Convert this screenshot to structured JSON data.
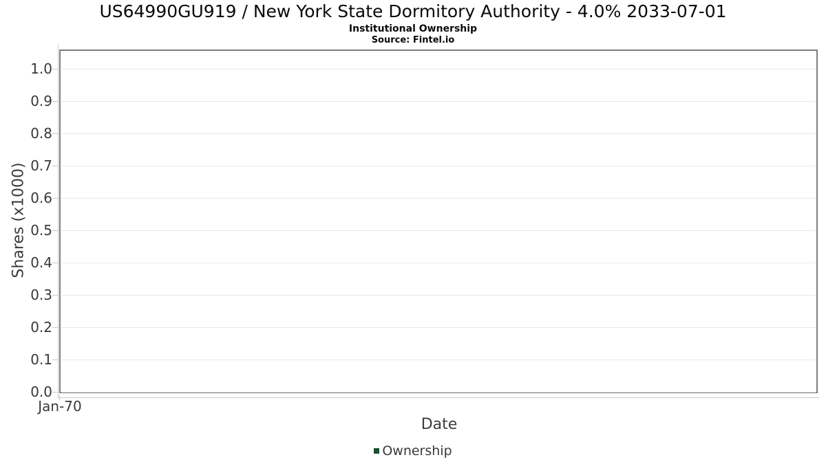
{
  "header": {
    "title": "US64990GU919 / New York State Dormitory Authority - 4.0% 2033-07-01",
    "subtitle": "Institutional Ownership",
    "source": "Source: Fintel.io"
  },
  "chart_data": {
    "type": "line",
    "title": "US64990GU919 / New York State Dormitory Authority - 4.0% 2033-07-01",
    "subtitle": "Institutional Ownership",
    "source_note": "Source: Fintel.io",
    "xlabel": "Date",
    "ylabel": "Shares (x1000)",
    "x_tick_labels": [
      "Jan-70"
    ],
    "y_ticks": [
      0.0,
      0.1,
      0.2,
      0.3,
      0.4,
      0.5,
      0.6,
      0.7,
      0.8,
      0.9,
      1.0
    ],
    "y_tick_labels": [
      "0.0",
      "0.1",
      "0.2",
      "0.3",
      "0.4",
      "0.5",
      "0.6",
      "0.7",
      "0.8",
      "0.9",
      "1.0"
    ],
    "ylim": [
      0,
      1.057
    ],
    "grid": "horizontal-only",
    "legend_position": "bottom-center",
    "series": [
      {
        "name": "Ownership",
        "color": "#1d4f2c",
        "points": []
      }
    ],
    "colors": {
      "grid": "#e8e8e8",
      "plot_border": "#7d7d7d",
      "axis_line": "#c9c9c9",
      "tick_label": "#38383c",
      "legend_marker": "#1d4f2c"
    }
  }
}
